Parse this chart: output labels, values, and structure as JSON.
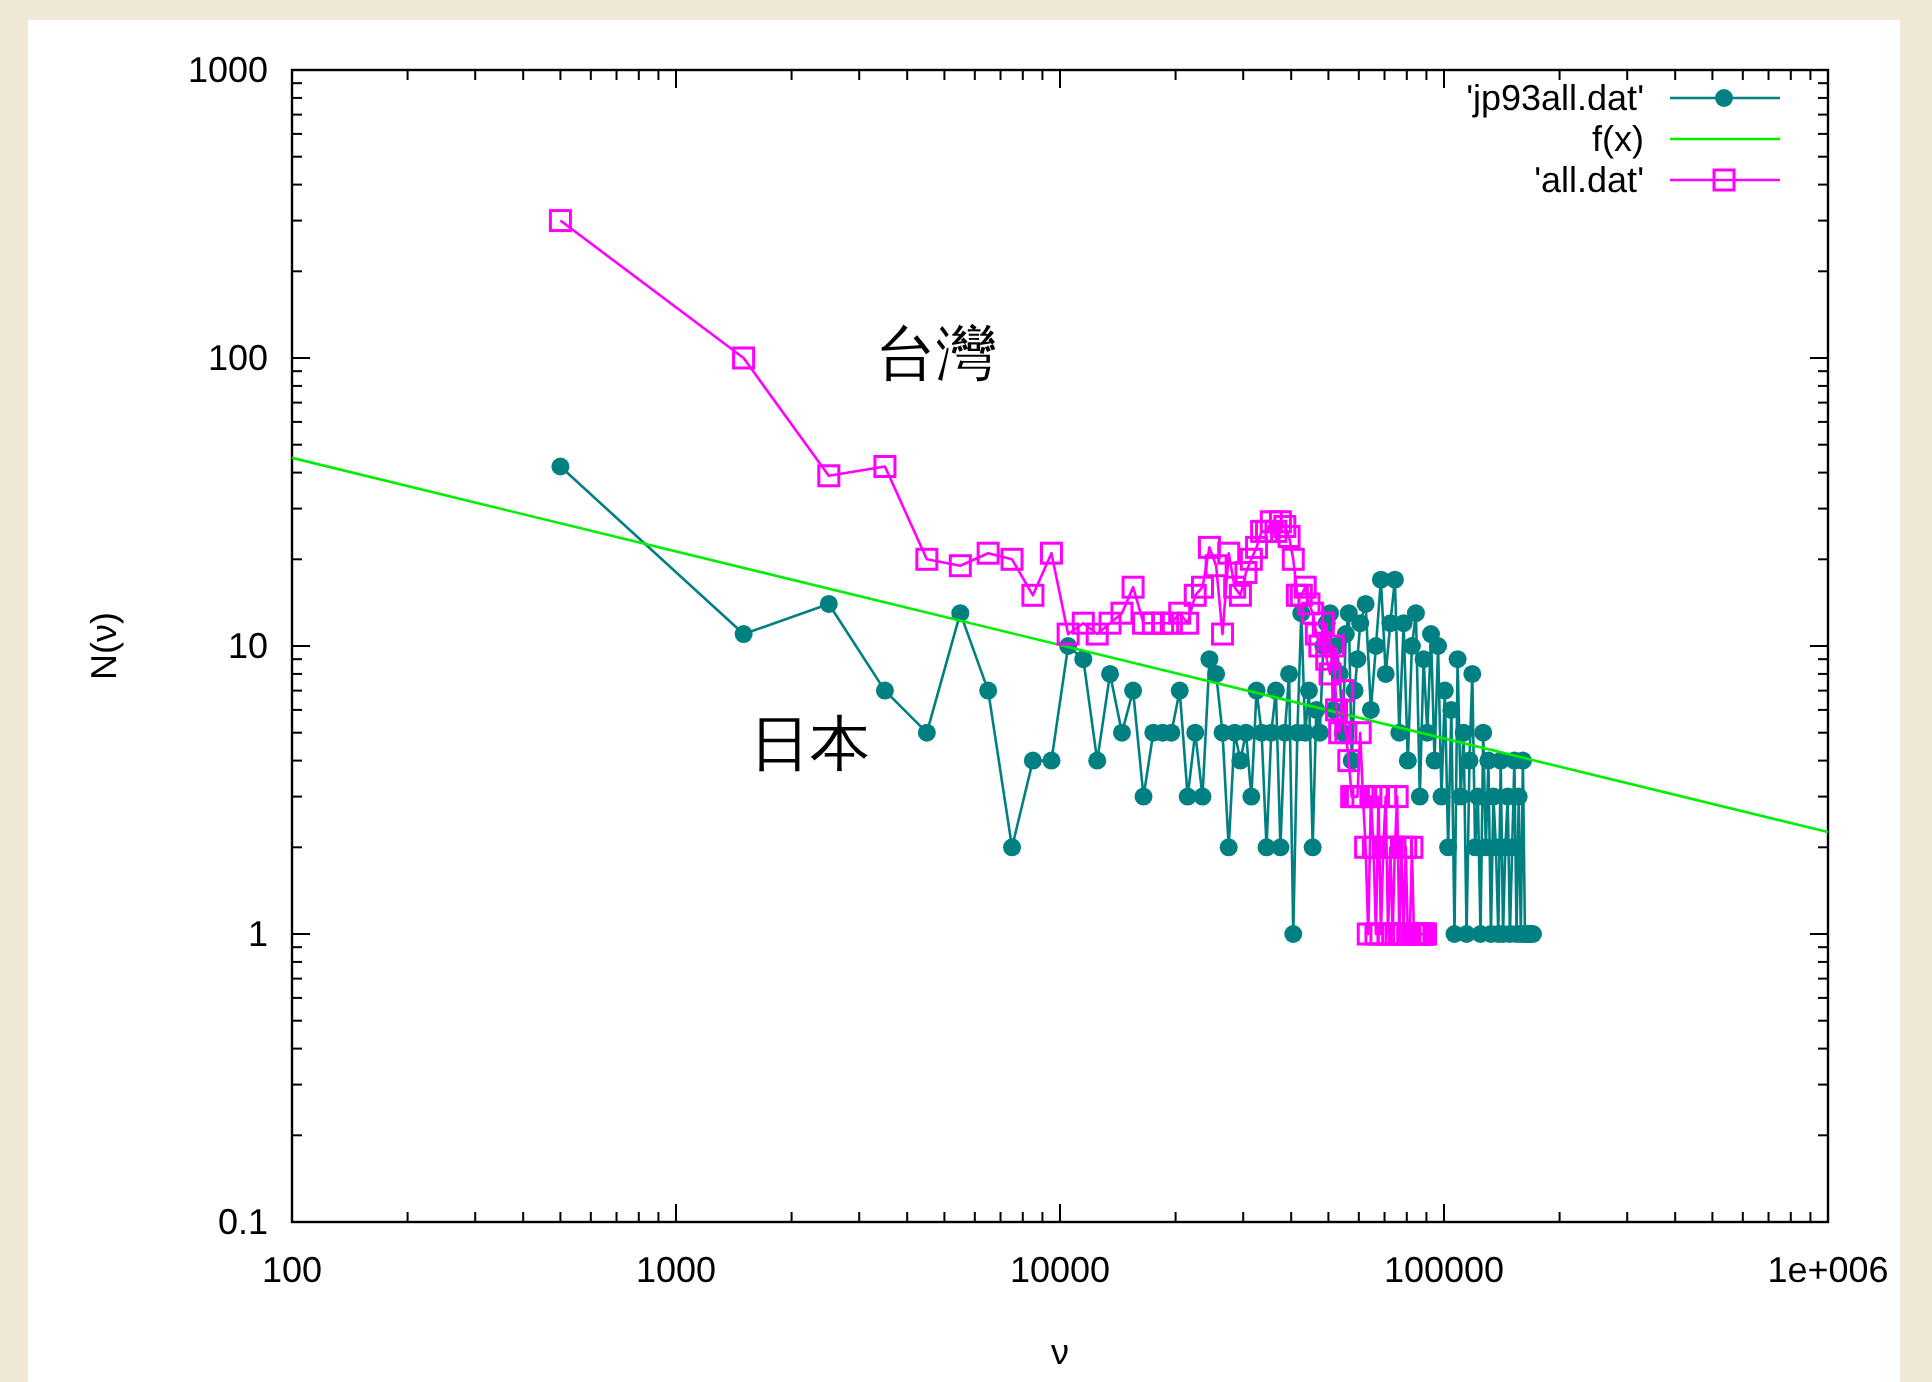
{
  "chart_data": {
    "type": "line",
    "xlabel": "ν",
    "ylabel": "N(ν)",
    "log": "xy",
    "grid": false,
    "legend": "top right",
    "xlim": [
      100,
      1000000
    ],
    "ylim": [
      0.1,
      1000
    ],
    "xticks": [
      100,
      1000,
      10000,
      100000,
      {
        "value": 1000000,
        "label": "1e+006"
      }
    ],
    "yticks": [
      0.1,
      1,
      10,
      100,
      1000
    ],
    "annotations": [
      "台灣",
      "日本"
    ],
    "series": [
      {
        "name": "'jp93all.dat'",
        "color": "#008080",
        "marker": "circle",
        "x": [
          500,
          1500,
          2500,
          3500,
          4500,
          5500,
          6500,
          7500,
          8500,
          9500,
          10500,
          11500,
          12500,
          13500,
          14500,
          15500,
          16500,
          17500,
          18500,
          19500,
          20500,
          21500,
          22500,
          23500,
          24500,
          25500,
          26500,
          27500,
          28500,
          29500,
          30500,
          31500,
          32500,
          33500,
          34500,
          35500,
          36500,
          37500,
          38500,
          39500,
          40500,
          41500,
          42500,
          43500,
          44500,
          45500,
          46500,
          47500,
          48500,
          49500,
          50500,
          51500,
          52500,
          53500,
          54500,
          55500,
          56500,
          57500,
          58500,
          59500,
          60500,
          62500,
          64500,
          66500,
          68500,
          70500,
          72500,
          74500,
          76500,
          78500,
          80500,
          82500,
          84500,
          86500,
          88500,
          90500,
          92500,
          94500,
          96500,
          98500,
          100500,
          102500,
          104500,
          106500,
          108500,
          110500,
          112500,
          114500,
          116500,
          118500,
          120500,
          122500,
          124500,
          126500,
          128500,
          130500,
          132500,
          134500,
          136500,
          138500,
          140500,
          142500,
          144500,
          146500,
          148500,
          150500,
          152500,
          154500,
          156500,
          158500,
          160500,
          162500,
          164500,
          166500,
          168500,
          170500
        ],
        "values": [
          42,
          11,
          14,
          7,
          5,
          13,
          7,
          2,
          4,
          4,
          10,
          9,
          4,
          8,
          5,
          7,
          3,
          5,
          5,
          5,
          7,
          3,
          5,
          3,
          9,
          8,
          5,
          2,
          5,
          4,
          5,
          3,
          7,
          5,
          2,
          5,
          7,
          2,
          5,
          8,
          1,
          5,
          13,
          5,
          7,
          2,
          6,
          5,
          10,
          12,
          13,
          6,
          10,
          8,
          5,
          11,
          13,
          4,
          7,
          9,
          12,
          14,
          6,
          10,
          17,
          8,
          12,
          17,
          5,
          12,
          4,
          10,
          13,
          3,
          9,
          5,
          11,
          4,
          10,
          3,
          7,
          2,
          6,
          1,
          9,
          3,
          5,
          1,
          4,
          8,
          2,
          3,
          1,
          5,
          2,
          4,
          1,
          3,
          2,
          1,
          4,
          1,
          2,
          3,
          1,
          2,
          4,
          1,
          3,
          1,
          4,
          1,
          1,
          1,
          1,
          1
        ]
      },
      {
        "name": "f(x)",
        "color": "#00ee00",
        "marker": "none",
        "x": [
          100,
          1000000
        ],
        "values": [
          45,
          2.26
        ]
      },
      {
        "name": "'all.dat'",
        "color": "#ff00ff",
        "marker": "square",
        "x": [
          500,
          1500,
          2500,
          3500,
          4500,
          5500,
          6500,
          7500,
          8500,
          9500,
          10500,
          11500,
          12500,
          13500,
          14500,
          15500,
          16500,
          17500,
          18500,
          19500,
          20500,
          21500,
          22500,
          23500,
          24500,
          25500,
          26500,
          27500,
          28500,
          29500,
          30500,
          31500,
          32500,
          33500,
          34500,
          35500,
          36500,
          37500,
          38500,
          39500,
          40500,
          41500,
          42500,
          43500,
          44500,
          45500,
          46500,
          47500,
          48500,
          49500,
          50500,
          51500,
          52500,
          53500,
          54500,
          55500,
          56500,
          57500,
          58500,
          59500,
          60500,
          61500,
          62500,
          63500,
          64500,
          65500,
          66500,
          67500,
          68500,
          69500,
          70500,
          71500,
          72500,
          73500,
          74500,
          75500,
          76500,
          77500,
          78500,
          79500,
          80500,
          81500,
          82500,
          83500,
          84500,
          85500,
          86500,
          87500,
          88500,
          89500
        ],
        "values": [
          300,
          100,
          39,
          42,
          20,
          19,
          21,
          20,
          15,
          21,
          11,
          12,
          11,
          12,
          13,
          16,
          12,
          12,
          12,
          12,
          13,
          12,
          15,
          16,
          22,
          19,
          11,
          21,
          16,
          15,
          18,
          20,
          22,
          25,
          25,
          27,
          25,
          27,
          26,
          24,
          20,
          15,
          15,
          16,
          14,
          13,
          11,
          10,
          12,
          9,
          8,
          10,
          6,
          5,
          7,
          5,
          4,
          3,
          3,
          3,
          5,
          3,
          2,
          1,
          3,
          2,
          1,
          3,
          1,
          2,
          3,
          1,
          2,
          1,
          2,
          3,
          1,
          2,
          1,
          2,
          1,
          1,
          2,
          1,
          1,
          1,
          1,
          1,
          1,
          1
        ]
      }
    ]
  }
}
